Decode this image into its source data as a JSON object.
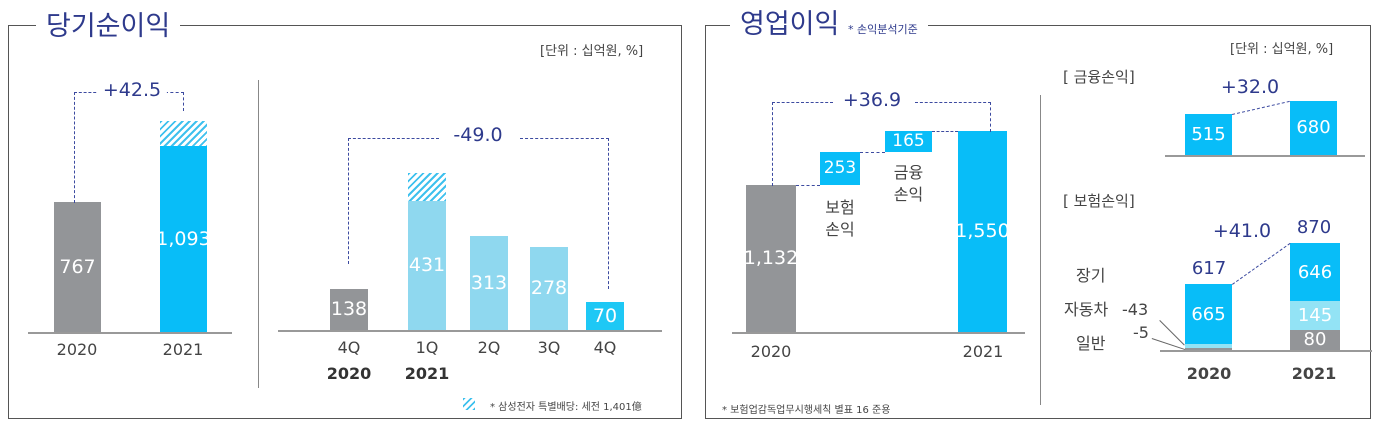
{
  "colors": {
    "gray": "#939598",
    "blue": "#08bdf8",
    "light_blue": "#8fd8ef",
    "pale_cyan": "#93e3f5",
    "navy": "#2e3a8c"
  },
  "net_income": {
    "title": "당기순이익",
    "unit": "[단위 :  십억원, %]",
    "footnote": "* 삼성전자 특별배당: 세전 1,401億",
    "footnote_icon": "hatch-pattern-swatch"
  },
  "operating_income": {
    "title": "영업이익",
    "subtitle": "* 손익분석기준",
    "unit": "[단위 :  십억원, %]",
    "footnote": "* 보험업감독업무시행세칙 별표 16 준용"
  },
  "chart_data": [
    {
      "type": "bar",
      "id": "annual_net_income",
      "categories": [
        "2020",
        "2021"
      ],
      "values": [
        767,
        1093
      ],
      "value_labels": [
        "767",
        "1,093"
      ],
      "hatched_portion_on": [
        "2021"
      ],
      "change_label": "+42.5"
    },
    {
      "type": "bar",
      "id": "quarterly_net_income",
      "categories": [
        [
          "4Q",
          "2020"
        ],
        [
          "1Q",
          "2021"
        ],
        [
          "2Q",
          ""
        ],
        [
          "3Q",
          ""
        ],
        [
          "4Q",
          ""
        ]
      ],
      "values": [
        138,
        431,
        313,
        278,
        70
      ],
      "value_labels": [
        "138",
        "431",
        "313",
        "278",
        "70"
      ],
      "hatched_portion_on": [
        "1Q 2021"
      ],
      "change_label": "-49.0"
    },
    {
      "type": "bar",
      "id": "operating_income_waterfall",
      "categories": [
        "2020",
        "보험\n손익",
        "금융\n손익",
        "2021"
      ],
      "values": [
        1132,
        253,
        165,
        1550
      ],
      "value_labels": [
        "1,132",
        "253",
        "165",
        "1,550"
      ],
      "change_label": "+36.9"
    },
    {
      "type": "bar",
      "id": "financial_income",
      "title": "[ 금융손익]",
      "categories": [
        "2020",
        "2021"
      ],
      "values": [
        515,
        680
      ],
      "value_labels": [
        "515",
        "680"
      ],
      "change_label": "+32.0"
    },
    {
      "type": "bar",
      "id": "insurance_income",
      "title": "[ 보험손익]",
      "stacked": true,
      "categories": [
        "2020",
        "2021"
      ],
      "series": [
        {
          "name": "장기",
          "values": [
            665,
            646
          ],
          "labels": [
            "665",
            "646"
          ]
        },
        {
          "name": "자동차",
          "values": [
            -43,
            145
          ],
          "labels": [
            "-43",
            "145"
          ]
        },
        {
          "name": "일반",
          "values": [
            -5,
            80
          ],
          "labels": [
            "-5",
            "80"
          ]
        }
      ],
      "totals": [
        617,
        870
      ],
      "total_labels": [
        "617",
        "870"
      ],
      "change_label": "+41.0"
    }
  ]
}
